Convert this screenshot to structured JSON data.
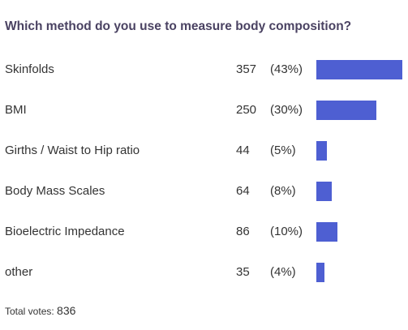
{
  "poll": {
    "question": "Which method do you use to measure body composition?",
    "bar_color": "#4e5fd2",
    "total_label": "Total votes:",
    "total_votes": "836"
  },
  "chart_data": {
    "type": "bar",
    "orientation": "horizontal",
    "title": "Which method do you use to measure body composition?",
    "categories": [
      "Skinfolds",
      "BMI",
      "Girths / Waist to Hip ratio",
      "Body Mass Scales",
      "Bioelectric Impedance",
      "other"
    ],
    "values": [
      357,
      250,
      44,
      64,
      86,
      35
    ],
    "percent_labels": [
      "(43%)",
      "(30%)",
      "(5%)",
      "(8%)",
      "(10%)",
      "(4%)"
    ],
    "grid": false,
    "legend": "none"
  }
}
